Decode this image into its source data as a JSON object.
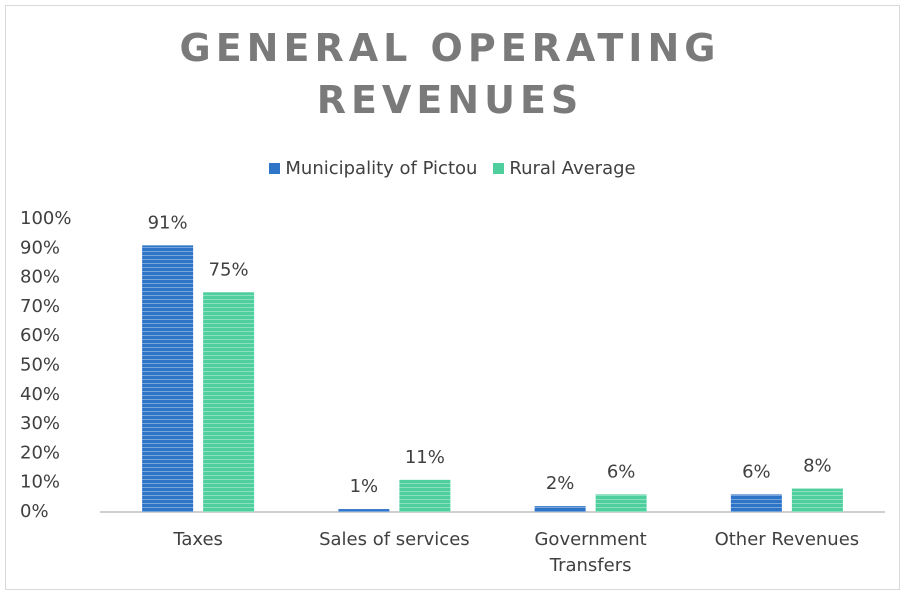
{
  "chart_data": {
    "type": "bar",
    "title": "GENERAL OPERATING REVENUES",
    "categories": [
      "Taxes",
      "Sales of services",
      "Government Transfers",
      "Other Revenues"
    ],
    "series": [
      {
        "name": "Municipality of Pictou",
        "color": "#2e75c8",
        "values": [
          91,
          1,
          2,
          6
        ],
        "value_labels": [
          "91%",
          "1%",
          "2%",
          "6%"
        ]
      },
      {
        "name": "Rural Average",
        "color": "#4fcf9e",
        "values": [
          75,
          11,
          6,
          8
        ],
        "value_labels": [
          "75%",
          "11%",
          "6%",
          "8%"
        ]
      }
    ],
    "ylim": [
      0,
      100
    ],
    "yticks": [
      {
        "value": 0,
        "label": "0%"
      },
      {
        "value": 10,
        "label": "10%"
      },
      {
        "value": 20,
        "label": "20%"
      },
      {
        "value": 30,
        "label": "30%"
      },
      {
        "value": 40,
        "label": "40%"
      },
      {
        "value": 50,
        "label": "50%"
      },
      {
        "value": 60,
        "label": "60%"
      },
      {
        "value": 70,
        "label": "70%"
      },
      {
        "value": 80,
        "label": "80%"
      },
      {
        "value": 90,
        "label": "90%"
      },
      {
        "value": 100,
        "label": "100%"
      }
    ],
    "grid": false,
    "legend": "top"
  }
}
